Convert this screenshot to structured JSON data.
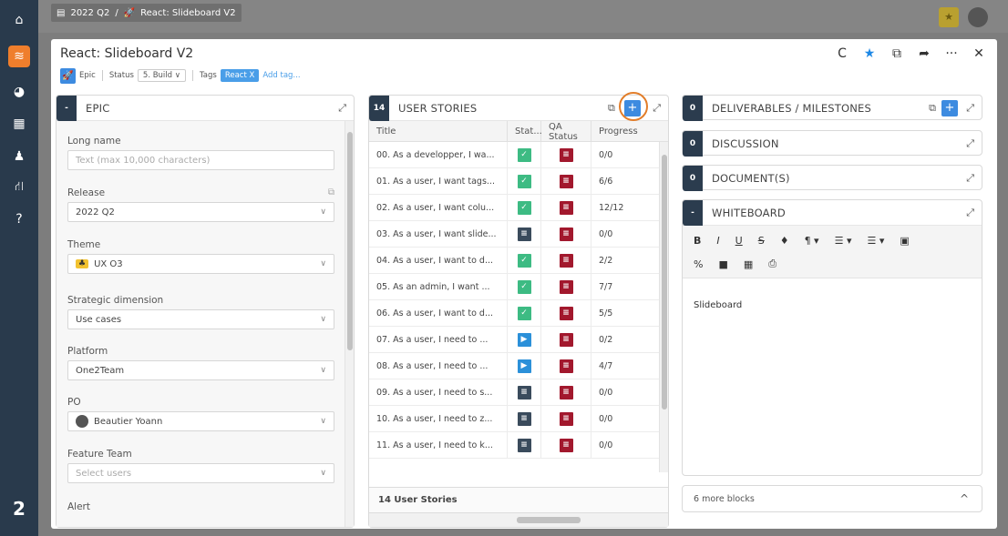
{
  "rail": {
    "icons": [
      "home-icon",
      "layers-icon",
      "pie-chart-icon",
      "calendar-icon",
      "team-icon",
      "org-chart-icon",
      "help-icon"
    ],
    "bottom_number": "2"
  },
  "background_breadcrumb": {
    "quarter": "2022 Q2",
    "sep": "/",
    "project": "React: Slideboard V2"
  },
  "modal": {
    "title": "React: Slideboard V2",
    "meta": {
      "type": "Epic",
      "status_label": "Status",
      "status_value": "5. Build",
      "tags_label": "Tags",
      "tag": "React",
      "tag_remove": "X",
      "add_tag": "Add tag..."
    },
    "tools": {
      "refresh": "C",
      "star": "★",
      "open": "⧉",
      "share": "➦",
      "more": "···",
      "close": "✕"
    }
  },
  "epic_panel": {
    "badge": "-",
    "title": "EPIC",
    "fields": [
      {
        "label": "Long name",
        "placeholder": "Text (max 10,000 characters)"
      },
      {
        "label": "Release",
        "value": "2022 Q2"
      },
      {
        "label": "Theme",
        "value": "UX O3"
      },
      {
        "label": "Strategic dimension",
        "value": "Use cases"
      },
      {
        "label": "Platform",
        "value": "One2Team"
      },
      {
        "label": "PO",
        "value": "Beautier Yoann"
      },
      {
        "label": "Feature Team",
        "placeholder": "Select users"
      },
      {
        "label": "Alert"
      }
    ]
  },
  "stories_panel": {
    "badge": "14",
    "title": "USER STORIES",
    "add": "+",
    "columns": [
      "Title",
      "Stat...",
      "QA Status",
      "Progress"
    ],
    "rows": [
      {
        "title": "00. As a developper, I wa...",
        "status": "done",
        "progress": "0/0"
      },
      {
        "title": "01. As a user, I want tags...",
        "status": "done",
        "progress": "6/6"
      },
      {
        "title": "02. As a user, I want colu...",
        "status": "done",
        "progress": "12/12"
      },
      {
        "title": "03. As a user, I want slide...",
        "status": "todo",
        "progress": "0/0"
      },
      {
        "title": "04. As a user, I want to d...",
        "status": "done",
        "progress": "2/2"
      },
      {
        "title": "05. As an admin, I want ...",
        "status": "done",
        "progress": "7/7"
      },
      {
        "title": "06. As a user, I want to d...",
        "status": "done",
        "progress": "5/5"
      },
      {
        "title": "07. As a user, I need to ...",
        "status": "run",
        "progress": "0/2"
      },
      {
        "title": "08. As a user, I need to ...",
        "status": "run",
        "progress": "4/7"
      },
      {
        "title": "09. As a user, I need to s...",
        "status": "todo",
        "progress": "0/0"
      },
      {
        "title": "10. As a user, I need to z...",
        "status": "todo",
        "progress": "0/0"
      },
      {
        "title": "11. As a user, I need to k...",
        "status": "todo",
        "progress": "0/0"
      }
    ],
    "footer": "14 User Stories"
  },
  "deliverables_panel": {
    "badge": "0",
    "title": "DELIVERABLES / MILESTONES",
    "add": "+"
  },
  "discussion_panel": {
    "badge": "0",
    "title": "DISCUSSION"
  },
  "documents_panel": {
    "badge": "0",
    "title": "DOCUMENT(S)"
  },
  "whiteboard_panel": {
    "badge": "-",
    "title": "WHITEBOARD",
    "toolbar1": [
      "B",
      "I",
      "U",
      "S",
      "♦",
      "¶ ▾",
      "☰ ▾",
      "☰ ▾",
      "▣"
    ],
    "toolbar2": [
      "%",
      "■",
      "▦",
      "⎙"
    ],
    "content": "Slideboard"
  },
  "more_blocks": {
    "label": "6 more blocks",
    "caret": "^"
  },
  "colors": {
    "rail": "#293a4c",
    "accent": "#ef7e2c",
    "blue": "#3d8be0",
    "done": "#3dbb83",
    "qa": "#a2182d"
  }
}
